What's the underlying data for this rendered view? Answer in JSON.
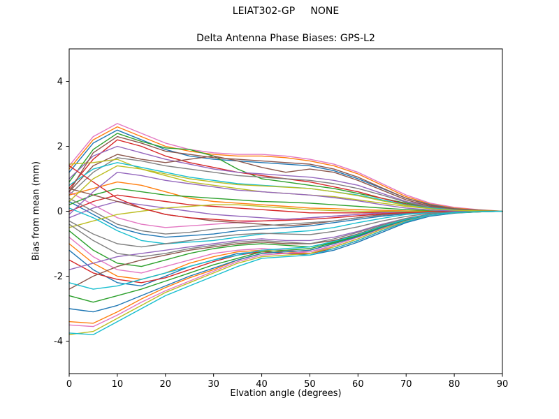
{
  "chart_data": {
    "type": "line",
    "suptitle": "LEIAT302-GP     NONE",
    "title": "Delta Antenna Phase Biases: GPS-L2",
    "xlabel": "Elvation angle (degrees)",
    "ylabel": "Bias from mean (mm)",
    "xlim": [
      0,
      90
    ],
    "ylim": [
      -5,
      5
    ],
    "xticks": [
      0,
      10,
      20,
      30,
      40,
      50,
      60,
      70,
      80,
      90
    ],
    "yticks": [
      -4,
      -2,
      0,
      2,
      4
    ],
    "grid": false,
    "legend": "none",
    "palette": [
      "#e377c2",
      "#ff7f0e",
      "#1f77b4",
      "#2ca02c",
      "#d62728",
      "#9467bd",
      "#8c564b",
      "#7f7f7f",
      "#bcbd22",
      "#17becf"
    ],
    "x": [
      0,
      5,
      10,
      15,
      20,
      25,
      30,
      35,
      40,
      45,
      50,
      55,
      60,
      65,
      70,
      75,
      80,
      85,
      90
    ],
    "series": [
      {
        "values": [
          1.4,
          2.3,
          2.7,
          2.4,
          2.1,
          1.9,
          1.8,
          1.75,
          1.75,
          1.7,
          1.6,
          1.45,
          1.2,
          0.85,
          0.5,
          0.25,
          0.12,
          0.05,
          0
        ]
      },
      {
        "values": [
          1.3,
          2.2,
          2.6,
          2.3,
          2.0,
          1.85,
          1.75,
          1.7,
          1.7,
          1.65,
          1.55,
          1.4,
          1.15,
          0.8,
          0.45,
          0.22,
          0.1,
          0.04,
          0
        ]
      },
      {
        "values": [
          1.2,
          2.1,
          2.5,
          2.2,
          1.9,
          1.7,
          1.6,
          1.55,
          1.5,
          1.45,
          1.4,
          1.25,
          1.0,
          0.7,
          0.4,
          0.2,
          0.08,
          0.03,
          0
        ]
      },
      {
        "values": [
          0.9,
          1.9,
          2.4,
          2.15,
          1.95,
          1.9,
          1.7,
          1.3,
          1.0,
          0.9,
          0.8,
          0.7,
          0.55,
          0.4,
          0.25,
          0.12,
          0.05,
          0.02,
          0
        ]
      },
      {
        "values": [
          0.7,
          1.6,
          2.2,
          2.0,
          1.7,
          1.5,
          1.35,
          1.2,
          1.1,
          1.0,
          0.9,
          0.75,
          0.6,
          0.4,
          0.22,
          0.1,
          0.04,
          0.02,
          0
        ]
      },
      {
        "values": [
          1.0,
          1.7,
          2.0,
          1.8,
          1.6,
          1.45,
          1.3,
          1.2,
          1.15,
          1.1,
          1.05,
          0.95,
          0.8,
          0.55,
          0.3,
          0.15,
          0.06,
          0.02,
          0
        ]
      },
      {
        "values": [
          0.6,
          1.4,
          1.75,
          1.6,
          1.5,
          1.6,
          1.7,
          1.55,
          1.35,
          1.2,
          1.3,
          1.2,
          0.95,
          0.65,
          0.35,
          0.15,
          0.06,
          0.02,
          0
        ]
      },
      {
        "values": [
          0.5,
          1.2,
          1.65,
          1.55,
          1.4,
          1.3,
          1.2,
          1.1,
          1.05,
          1.0,
          0.95,
          0.85,
          0.7,
          0.5,
          0.28,
          0.12,
          0.05,
          0.02,
          0
        ]
      },
      {
        "values": [
          1.45,
          1.5,
          1.6,
          1.3,
          1.1,
          0.9,
          0.8,
          0.7,
          0.6,
          0.55,
          0.5,
          0.45,
          0.35,
          0.25,
          0.15,
          0.08,
          0.03,
          0.01,
          0
        ]
      },
      {
        "values": [
          0.8,
          1.3,
          1.5,
          1.35,
          1.2,
          1.05,
          0.95,
          0.85,
          0.8,
          0.75,
          0.7,
          0.6,
          0.5,
          0.35,
          0.2,
          0.1,
          0.04,
          0.01,
          0
        ]
      },
      {
        "values": [
          0.6,
          0.2,
          -0.2,
          -0.4,
          -0.5,
          -0.45,
          -0.4,
          -0.35,
          -0.3,
          -0.25,
          -0.2,
          -0.15,
          -0.1,
          -0.05,
          -0.02,
          0,
          0,
          0,
          0
        ]
      },
      {
        "values": [
          0.5,
          0.7,
          0.9,
          0.8,
          0.6,
          0.4,
          0.3,
          0.25,
          0.2,
          0.15,
          0.1,
          0.08,
          0.05,
          0.03,
          0.01,
          0,
          0,
          0,
          0
        ]
      },
      {
        "values": [
          0.3,
          -0.1,
          -0.5,
          -0.7,
          -0.8,
          -0.75,
          -0.7,
          -0.6,
          -0.55,
          -0.5,
          -0.45,
          -0.35,
          -0.25,
          -0.15,
          -0.08,
          -0.03,
          -0.01,
          0,
          0
        ]
      },
      {
        "values": [
          0.2,
          0.5,
          0.7,
          0.6,
          0.5,
          0.45,
          0.4,
          0.35,
          0.3,
          0.28,
          0.25,
          0.2,
          0.15,
          0.1,
          0.05,
          0.02,
          0.01,
          0,
          0
        ]
      },
      {
        "values": [
          0,
          0.3,
          0.5,
          0.4,
          0.3,
          0.2,
          0.15,
          0.1,
          0.05,
          0,
          -0.05,
          -0.05,
          -0.05,
          -0.03,
          -0.02,
          -0.01,
          0,
          0,
          0
        ]
      },
      {
        "values": [
          -0.2,
          0.1,
          0.3,
          0.2,
          0.1,
          0,
          -0.1,
          -0.15,
          -0.2,
          -0.25,
          -0.2,
          -0.15,
          -0.1,
          -0.05,
          -0.02,
          0,
          0,
          0,
          0
        ]
      },
      {
        "values": [
          0.7,
          0.5,
          0.3,
          0.1,
          -0.1,
          -0.2,
          -0.3,
          -0.35,
          -0.4,
          -0.45,
          -0.4,
          -0.3,
          -0.2,
          -0.1,
          -0.05,
          -0.02,
          0,
          0,
          0
        ]
      },
      {
        "values": [
          0.4,
          0,
          -0.4,
          -0.6,
          -0.7,
          -0.65,
          -0.55,
          -0.5,
          -0.45,
          -0.4,
          -0.35,
          -0.3,
          -0.2,
          -0.12,
          -0.06,
          -0.02,
          0,
          0,
          0
        ]
      },
      {
        "values": [
          -0.5,
          -0.3,
          -0.1,
          0,
          0.1,
          0.15,
          0.2,
          0.2,
          0.15,
          0.1,
          0.05,
          0.02,
          0,
          0,
          0,
          0,
          0,
          0,
          0
        ]
      },
      {
        "values": [
          0.1,
          -0.2,
          -0.6,
          -0.9,
          -1.0,
          -0.95,
          -0.9,
          -0.8,
          -0.7,
          -0.65,
          -0.6,
          -0.5,
          -0.35,
          -0.22,
          -0.1,
          -0.04,
          -0.01,
          0,
          0
        ]
      },
      {
        "values": [
          -0.8,
          -1.4,
          -1.8,
          -1.9,
          -1.7,
          -1.5,
          -1.3,
          -1.2,
          -1.15,
          -1.2,
          -1.25,
          -1.1,
          -0.85,
          -0.55,
          -0.3,
          -0.12,
          -0.05,
          -0.02,
          0
        ]
      },
      {
        "values": [
          -1.0,
          -1.6,
          -2.0,
          -2.1,
          -1.9,
          -1.6,
          -1.4,
          -1.25,
          -1.2,
          -1.25,
          -1.3,
          -1.15,
          -0.9,
          -0.6,
          -0.32,
          -0.14,
          -0.05,
          -0.02,
          0
        ]
      },
      {
        "values": [
          -1.2,
          -1.8,
          -2.2,
          -2.3,
          -2.0,
          -1.7,
          -1.5,
          -1.3,
          -1.25,
          -1.3,
          -1.35,
          -1.2,
          -0.95,
          -0.65,
          -0.35,
          -0.15,
          -0.06,
          -0.02,
          0
        ]
      },
      {
        "values": [
          -0.6,
          -1.2,
          -1.6,
          -1.7,
          -1.5,
          -1.3,
          -1.15,
          -1.05,
          -1.0,
          -1.05,
          -1.1,
          -0.95,
          -0.75,
          -0.5,
          -0.27,
          -0.11,
          -0.04,
          -0.01,
          0
        ]
      },
      {
        "values": [
          -1.5,
          -1.9,
          -2.1,
          -2.2,
          -2.05,
          -1.8,
          -1.55,
          -1.35,
          -1.25,
          -1.3,
          -1.3,
          -1.15,
          -0.9,
          -0.6,
          -0.32,
          -0.13,
          -0.05,
          -0.02,
          0
        ]
      },
      {
        "values": [
          -1.8,
          -1.6,
          -1.4,
          -1.3,
          -1.2,
          -1.1,
          -1.0,
          -0.9,
          -0.85,
          -0.9,
          -0.9,
          -0.8,
          -0.62,
          -0.4,
          -0.22,
          -0.09,
          -0.03,
          -0.01,
          0
        ]
      },
      {
        "values": [
          -2.4,
          -2.0,
          -1.7,
          -1.5,
          -1.35,
          -1.2,
          -1.1,
          -1.0,
          -0.95,
          -1.0,
          -1.0,
          -0.9,
          -0.7,
          -0.45,
          -0.25,
          -0.1,
          -0.04,
          -0.01,
          0
        ]
      },
      {
        "values": [
          -0.4,
          -0.9,
          -1.3,
          -1.4,
          -1.3,
          -1.15,
          -1.05,
          -0.95,
          -0.9,
          -0.95,
          -1.0,
          -0.85,
          -0.65,
          -0.42,
          -0.22,
          -0.09,
          -0.03,
          -0.01,
          0
        ]
      },
      {
        "values": [
          -3.8,
          -3.7,
          -3.3,
          -2.9,
          -2.5,
          -2.2,
          -1.9,
          -1.6,
          -1.4,
          -1.35,
          -1.3,
          -1.1,
          -0.85,
          -0.55,
          -0.3,
          -0.12,
          -0.05,
          -0.02,
          0
        ]
      },
      {
        "values": [
          -3.75,
          -3.8,
          -3.4,
          -3.0,
          -2.6,
          -2.3,
          -2.0,
          -1.7,
          -1.45,
          -1.4,
          -1.35,
          -1.15,
          -0.9,
          -0.6,
          -0.32,
          -0.13,
          -0.05,
          -0.02,
          0
        ]
      },
      {
        "values": [
          -3.5,
          -3.55,
          -3.2,
          -2.8,
          -2.45,
          -2.15,
          -1.85,
          -1.55,
          -1.35,
          -1.3,
          -1.25,
          -1.05,
          -0.8,
          -0.52,
          -0.28,
          -0.11,
          -0.04,
          -0.01,
          0
        ]
      },
      {
        "values": [
          -3.4,
          -3.45,
          -3.1,
          -2.7,
          -2.35,
          -2.05,
          -1.8,
          -1.5,
          -1.3,
          -1.25,
          -1.2,
          -1.0,
          -0.78,
          -0.5,
          -0.27,
          -0.1,
          -0.04,
          -0.01,
          0
        ]
      },
      {
        "values": [
          -3.0,
          -3.1,
          -2.9,
          -2.6,
          -2.3,
          -2.0,
          -1.75,
          -1.5,
          -1.3,
          -1.25,
          -1.2,
          -1.0,
          -0.78,
          -0.5,
          -0.27,
          -0.1,
          -0.04,
          -0.01,
          0
        ]
      },
      {
        "values": [
          -2.6,
          -2.8,
          -2.6,
          -2.4,
          -2.15,
          -1.9,
          -1.65,
          -1.45,
          -1.25,
          -1.2,
          -1.15,
          -0.97,
          -0.75,
          -0.48,
          -0.26,
          -0.1,
          -0.04,
          -0.01,
          0
        ]
      },
      {
        "values": [
          1.4,
          0.9,
          0.4,
          0.1,
          -0.1,
          -0.2,
          -0.25,
          -0.3,
          -0.3,
          -0.28,
          -0.25,
          -0.2,
          -0.14,
          -0.08,
          -0.04,
          -0.01,
          0,
          0,
          0
        ]
      },
      {
        "values": [
          -0.1,
          0.6,
          1.2,
          1.1,
          0.95,
          0.85,
          0.75,
          0.65,
          0.6,
          0.55,
          0.5,
          0.42,
          0.32,
          0.2,
          0.1,
          0.04,
          0.01,
          0,
          0
        ]
      },
      {
        "values": [
          0.6,
          1.8,
          2.3,
          2.1,
          1.85,
          1.75,
          1.65,
          1.6,
          1.55,
          1.5,
          1.45,
          1.3,
          1.05,
          0.72,
          0.4,
          0.18,
          0.07,
          0.02,
          0
        ]
      },
      {
        "values": [
          -0.3,
          -0.7,
          -1.0,
          -1.1,
          -1.0,
          -0.9,
          -0.8,
          -0.72,
          -0.68,
          -0.7,
          -0.72,
          -0.62,
          -0.48,
          -0.3,
          -0.16,
          -0.06,
          -0.02,
          0,
          0
        ]
      },
      {
        "values": [
          0.3,
          1.0,
          1.4,
          1.3,
          1.15,
          1.0,
          0.9,
          0.82,
          0.78,
          0.74,
          0.7,
          0.6,
          0.48,
          0.32,
          0.18,
          0.08,
          0.03,
          0.01,
          0
        ]
      },
      {
        "values": [
          -2.2,
          -2.4,
          -2.3,
          -2.1,
          -1.9,
          -1.7,
          -1.5,
          -1.35,
          -1.2,
          -1.15,
          -1.1,
          -0.93,
          -0.72,
          -0.46,
          -0.25,
          -0.1,
          -0.04,
          -0.01,
          0
        ]
      }
    ]
  }
}
